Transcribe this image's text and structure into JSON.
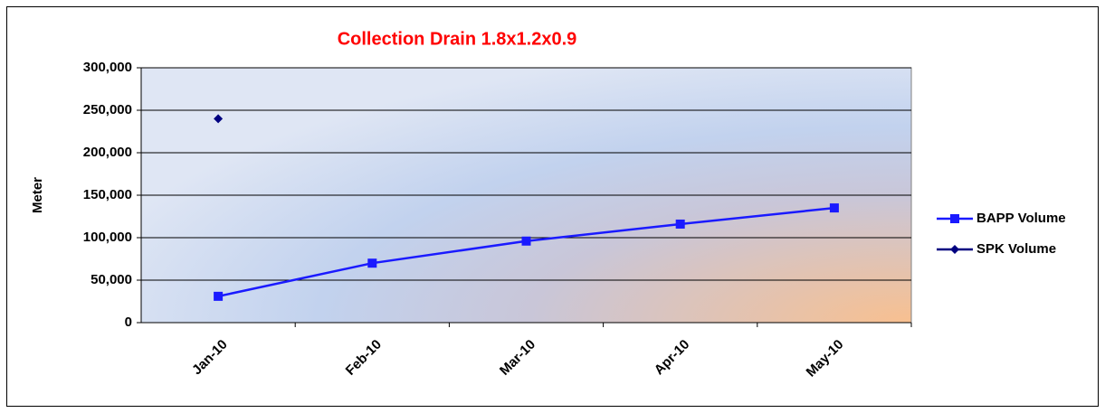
{
  "chart_data": {
    "type": "line",
    "title": "Collection Drain 1.8x1.2x0.9",
    "y_label": "Meter",
    "categories": [
      "Jan-10",
      "Feb-10",
      "Mar-10",
      "Apr-10",
      "May-10"
    ],
    "series": [
      {
        "name": "BAPP Volume",
        "color": "#1a1aff",
        "marker": "square",
        "values": [
          31000,
          70000,
          96000,
          116000,
          135000
        ]
      },
      {
        "name": "SPK Volume",
        "color": "#000080",
        "marker": "diamond",
        "values": [
          240000,
          null,
          null,
          null,
          null
        ]
      }
    ],
    "ylim": [
      0,
      300000
    ],
    "yticks": [
      0,
      {
        "value": 50000,
        "label": "50,000"
      },
      {
        "value": 100000,
        "label": "100,000"
      },
      {
        "value": 150000,
        "label": "150,000"
      },
      {
        "value": 200000,
        "label": "200,000"
      },
      {
        "value": 250000,
        "label": "250,000"
      },
      {
        "value": 300000,
        "label": "300,000"
      }
    ],
    "grid": true,
    "legend": "right"
  }
}
